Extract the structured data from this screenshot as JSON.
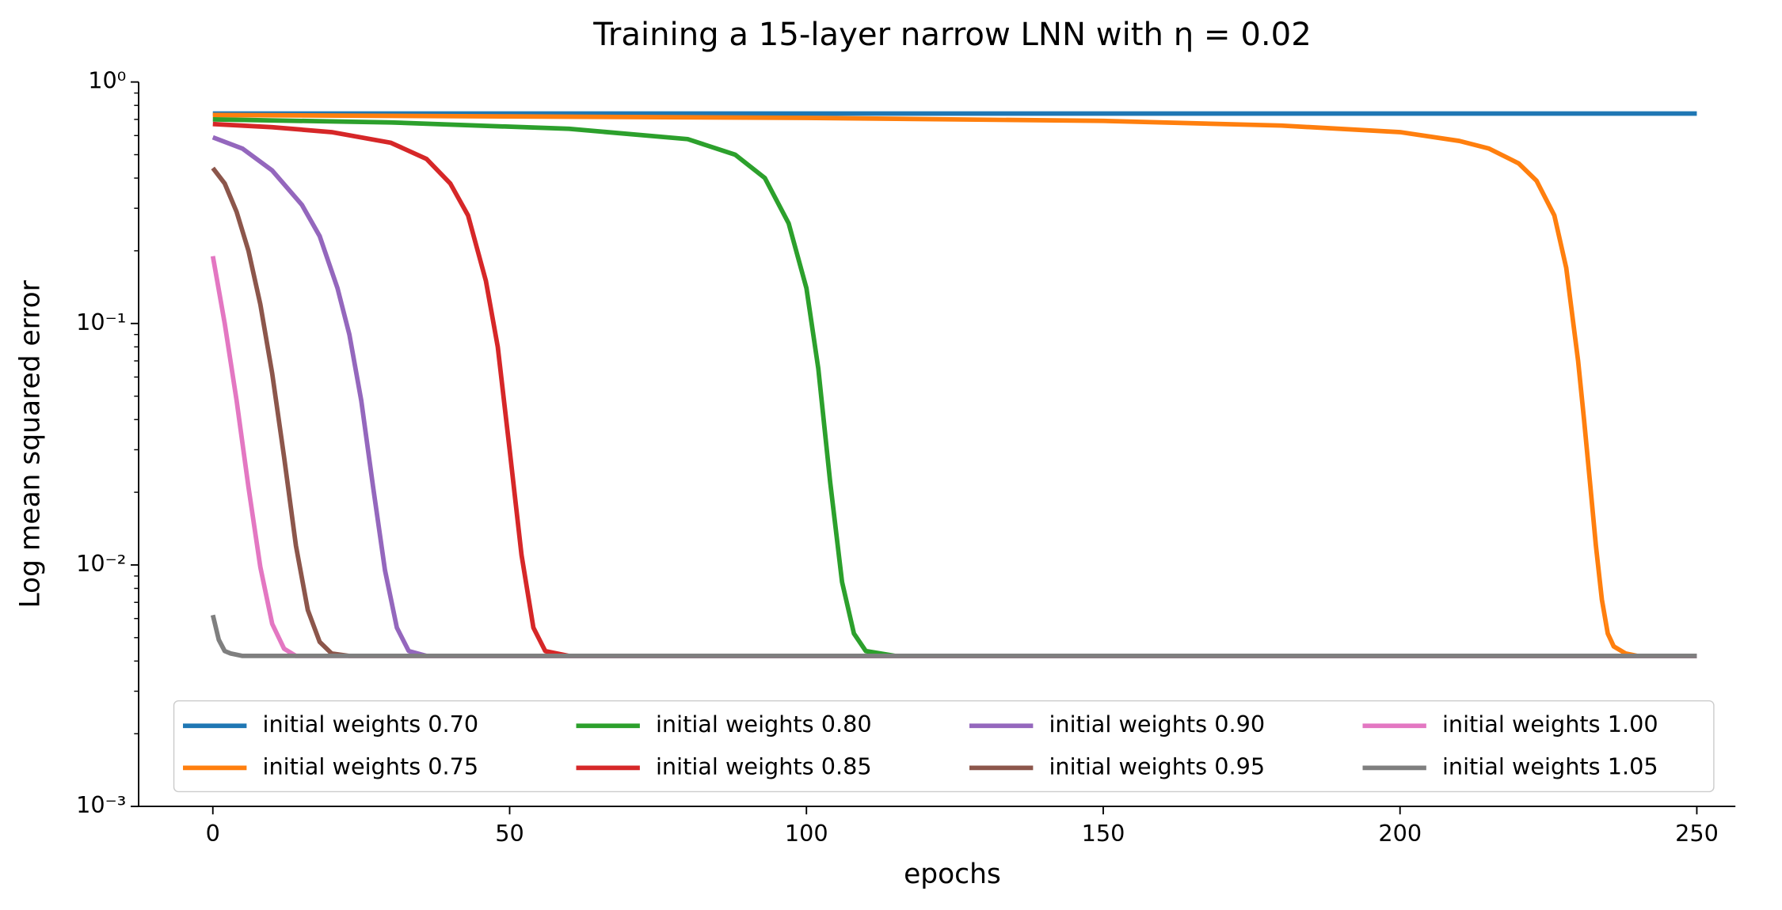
{
  "chart_data": {
    "type": "line",
    "title": "Training a 15-layer narrow LNN with η = 0.02",
    "xlabel": "epochs",
    "ylabel": "Log mean squared error",
    "yscale": "log",
    "xlim": [
      -12.5,
      256.5
    ],
    "xticks": [
      0,
      50,
      100,
      150,
      200,
      250
    ],
    "ylim": [
      0.001,
      1
    ],
    "yticks": [
      {
        "value": 1,
        "label": "10⁰"
      },
      {
        "value": 0.1,
        "label": "10⁻¹"
      },
      {
        "value": 0.01,
        "label": "10⁻²"
      },
      {
        "value": 0.001,
        "label": "10⁻³"
      }
    ],
    "grid": false,
    "legend": "lower center",
    "legend_ncol": 4,
    "series": [
      {
        "name": "initial weights 0.70",
        "color": "#1f77b4",
        "x": [
          0,
          250
        ],
        "values": [
          0.74,
          0.74
        ]
      },
      {
        "name": "initial weights 0.75",
        "color": "#ff7f0e",
        "x": [
          0,
          50,
          100,
          150,
          180,
          200,
          210,
          215,
          220,
          223,
          226,
          228,
          230,
          231,
          232,
          233,
          234,
          235,
          236,
          238,
          240,
          250
        ],
        "values": [
          0.73,
          0.72,
          0.71,
          0.69,
          0.66,
          0.62,
          0.57,
          0.53,
          0.46,
          0.39,
          0.28,
          0.17,
          0.07,
          0.04,
          0.022,
          0.012,
          0.0072,
          0.0052,
          0.0046,
          0.0043,
          0.0042,
          0.0042
        ]
      },
      {
        "name": "initial weights 0.80",
        "color": "#2ca02c",
        "x": [
          0,
          30,
          60,
          80,
          88,
          93,
          97,
          100,
          102,
          104,
          106,
          108,
          110,
          115,
          250
        ],
        "values": [
          0.7,
          0.68,
          0.64,
          0.58,
          0.5,
          0.4,
          0.26,
          0.14,
          0.065,
          0.022,
          0.0085,
          0.0052,
          0.0044,
          0.0042,
          0.0042
        ]
      },
      {
        "name": "initial weights 0.85",
        "color": "#d62728",
        "x": [
          0,
          10,
          20,
          30,
          36,
          40,
          43,
          46,
          48,
          50,
          52,
          54,
          56,
          60,
          250
        ],
        "values": [
          0.67,
          0.65,
          0.62,
          0.56,
          0.48,
          0.38,
          0.28,
          0.15,
          0.08,
          0.03,
          0.011,
          0.0055,
          0.0044,
          0.0042,
          0.0042
        ]
      },
      {
        "name": "initial weights 0.90",
        "color": "#9467bd",
        "x": [
          0,
          5,
          10,
          15,
          18,
          21,
          23,
          25,
          27,
          29,
          31,
          33,
          36,
          250
        ],
        "values": [
          0.59,
          0.53,
          0.43,
          0.31,
          0.23,
          0.14,
          0.09,
          0.048,
          0.021,
          0.0095,
          0.0055,
          0.0044,
          0.0042,
          0.0042
        ]
      },
      {
        "name": "initial weights 0.95",
        "color": "#8c564b",
        "x": [
          0,
          2,
          4,
          6,
          8,
          10,
          12,
          14,
          16,
          18,
          20,
          23,
          250
        ],
        "values": [
          0.44,
          0.38,
          0.29,
          0.2,
          0.12,
          0.062,
          0.028,
          0.012,
          0.0065,
          0.0048,
          0.0043,
          0.0042,
          0.0042
        ]
      },
      {
        "name": "initial weights 1.00",
        "color": "#e377c2",
        "x": [
          0,
          2,
          4,
          6,
          8,
          10,
          12,
          14,
          250
        ],
        "values": [
          0.19,
          0.1,
          0.048,
          0.021,
          0.0098,
          0.0057,
          0.0045,
          0.0042,
          0.0042
        ]
      },
      {
        "name": "initial weights 1.05",
        "color": "#7f7f7f",
        "x": [
          0,
          1,
          2,
          3,
          5,
          250
        ],
        "values": [
          0.0062,
          0.0049,
          0.0044,
          0.0043,
          0.0042,
          0.0042
        ]
      }
    ]
  }
}
